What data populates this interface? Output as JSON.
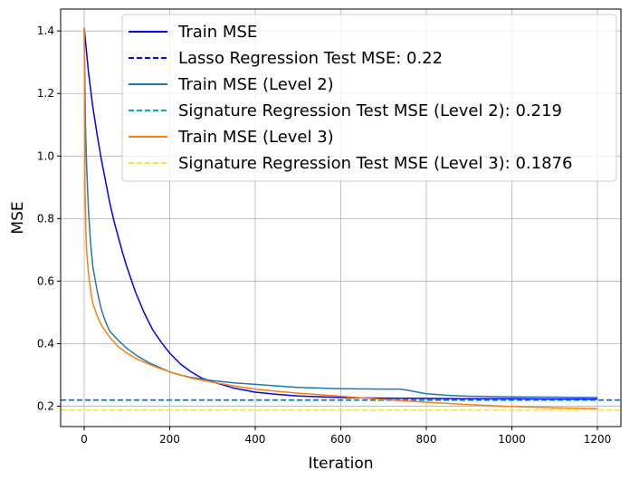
{
  "chart_data": {
    "type": "line",
    "xlabel": "Iteration",
    "ylabel": "MSE",
    "xlim": [
      -55,
      1255
    ],
    "ylim": [
      0.135,
      1.47
    ],
    "xticks": [
      0,
      200,
      400,
      600,
      800,
      1000,
      1200
    ],
    "xtick_labels": [
      "0",
      "200",
      "400",
      "600",
      "800",
      "1000",
      "1200"
    ],
    "yticks": [
      0.2,
      0.4,
      0.6,
      0.8,
      1.0,
      1.2,
      1.4
    ],
    "ytick_labels": [
      "0.2",
      "0.4",
      "0.6",
      "0.8",
      "1.0",
      "1.2",
      "1.4"
    ],
    "grid": true,
    "legend_position": "top-right",
    "series": [
      {
        "name": "Train MSE",
        "kind": "line",
        "color": "#0000ff",
        "dash": "solid",
        "x": [
          0,
          10,
          20,
          30,
          40,
          50,
          60,
          70,
          80,
          90,
          100,
          120,
          140,
          160,
          180,
          200,
          225,
          250,
          275,
          300,
          350,
          400,
          450,
          500,
          600,
          700,
          800,
          900,
          1000,
          1100,
          1200
        ],
        "y": [
          1.41,
          1.27,
          1.16,
          1.07,
          0.99,
          0.92,
          0.85,
          0.79,
          0.74,
          0.69,
          0.645,
          0.565,
          0.5,
          0.445,
          0.405,
          0.37,
          0.335,
          0.31,
          0.29,
          0.278,
          0.258,
          0.245,
          0.238,
          0.233,
          0.228,
          0.226,
          0.225,
          0.224,
          0.224,
          0.223,
          0.223
        ]
      },
      {
        "name": "Lasso Regression Test MSE: 0.22",
        "kind": "hline",
        "color": "#0000ff",
        "dash": "dashed",
        "value": 0.22
      },
      {
        "name": "Train MSE (Level 2)",
        "kind": "line",
        "color": "#1f77b4",
        "dash": "solid",
        "x": [
          0,
          3,
          6,
          10,
          15,
          20,
          30,
          40,
          50,
          60,
          80,
          100,
          125,
          150,
          175,
          200,
          225,
          250,
          300,
          350,
          400,
          450,
          500,
          600,
          700,
          740,
          760,
          800,
          850,
          900,
          1000,
          1100,
          1200
        ],
        "y": [
          1.41,
          1.1,
          0.96,
          0.83,
          0.72,
          0.65,
          0.57,
          0.51,
          0.47,
          0.44,
          0.41,
          0.385,
          0.36,
          0.34,
          0.325,
          0.31,
          0.3,
          0.292,
          0.282,
          0.275,
          0.27,
          0.265,
          0.26,
          0.256,
          0.255,
          0.255,
          0.25,
          0.24,
          0.235,
          0.232,
          0.23,
          0.229,
          0.228
        ]
      },
      {
        "name": "Signature Regression Test MSE (Level 2): 0.219",
        "kind": "hline",
        "color": "#17a2b8",
        "dash": "dashed",
        "value": 0.219
      },
      {
        "name": "Train MSE (Level 3)",
        "kind": "line",
        "color": "#ff7f0e",
        "dash": "solid",
        "x": [
          0,
          2,
          4,
          6,
          10,
          15,
          20,
          30,
          40,
          50,
          60,
          80,
          100,
          125,
          150,
          175,
          200,
          250,
          300,
          350,
          400,
          450,
          500,
          600,
          700,
          800,
          900,
          1000,
          1100,
          1200
        ],
        "y": [
          1.41,
          0.9,
          0.76,
          0.69,
          0.63,
          0.57,
          0.53,
          0.49,
          0.46,
          0.44,
          0.42,
          0.39,
          0.37,
          0.35,
          0.335,
          0.322,
          0.31,
          0.29,
          0.277,
          0.265,
          0.255,
          0.248,
          0.242,
          0.232,
          0.222,
          0.213,
          0.205,
          0.199,
          0.195,
          0.192
        ]
      },
      {
        "name": "Signature Regression Test MSE (Level 3): 0.1876",
        "kind": "hline",
        "color": "#ffe135",
        "dash": "dashed",
        "value": 0.1876
      }
    ]
  }
}
